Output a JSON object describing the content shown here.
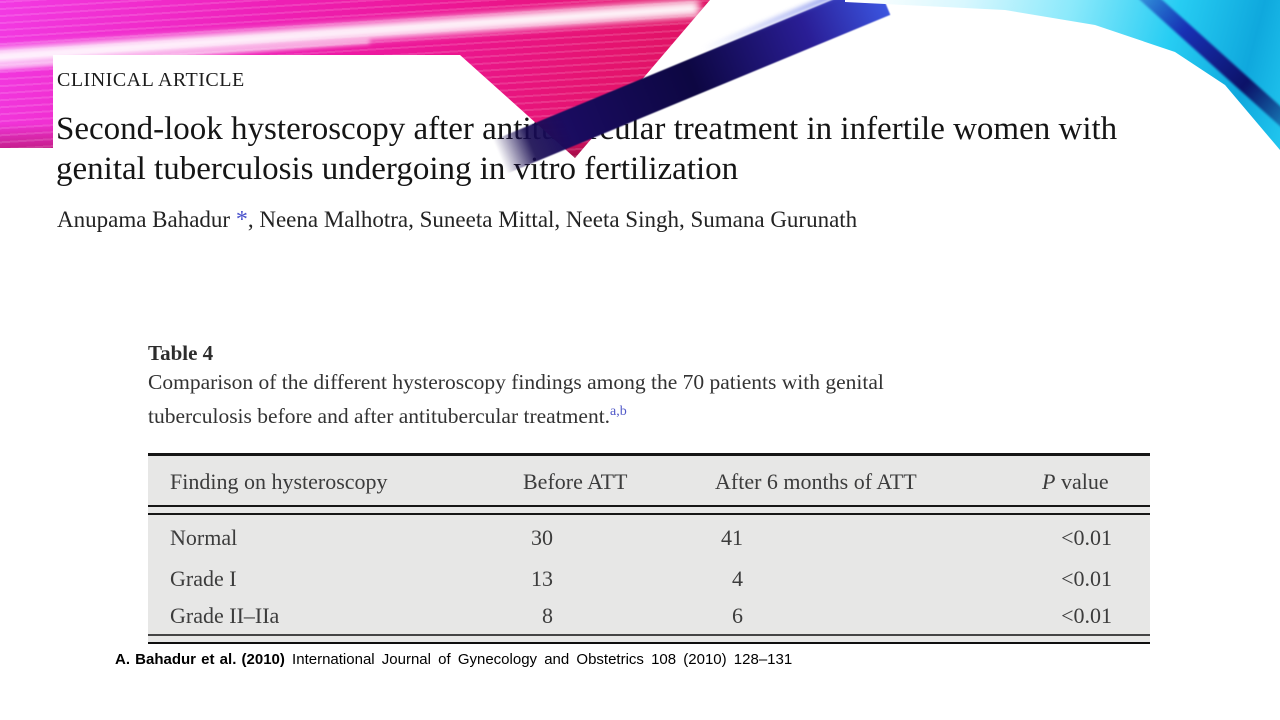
{
  "slide": {
    "article_type": "CLINICAL ARTICLE",
    "title_line1": "Second-look hysteroscopy after antitubercular treatment in infertile women with",
    "title_line2": "genital tuberculosis undergoing in vitro fertilization",
    "authors_first": "Anupama Bahadur ",
    "authors_asterisk": "*",
    "authors_rest": ", Neena Malhotra, Suneeta Mittal, Neeta Singh, Sumana Gurunath"
  },
  "table": {
    "label": "Table 4",
    "caption_line1": "Comparison of the different hysteroscopy findings among the 70 patients with genital",
    "caption_line2": "tuberculosis before and after antitubercular treatment.",
    "footnote_marker": "a,b",
    "columns": {
      "finding": "Finding on hysteroscopy",
      "before": "Before ATT",
      "after": "After 6 months of ATT",
      "p_italic": "P",
      "p_rest": " value"
    },
    "rows": [
      {
        "finding": "Normal",
        "before": "30",
        "after": "41",
        "p": "<0.01"
      },
      {
        "finding": "Grade I",
        "before": "13",
        "after": "4",
        "p": "<0.01"
      },
      {
        "finding": "Grade II–IIa",
        "before": "8",
        "after": "6",
        "p": "<0.01"
      }
    ]
  },
  "citation": {
    "reference_bold": "A. Bahadur et al. (2010)",
    "journal_info": " International Journal of Gynecology and Obstetrics 108 (2010) 128–131"
  },
  "colors": {
    "accent_pink": "#ec1693",
    "accent_navy": "#140a52",
    "accent_cyan": "#22c8f0",
    "footnote_blue": "#5058c8",
    "table_background": "#e7e7e6"
  }
}
